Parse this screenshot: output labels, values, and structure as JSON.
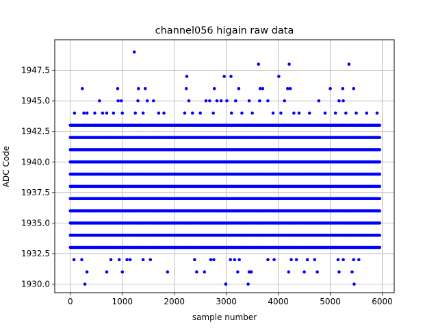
{
  "chart_data": {
    "type": "scatter",
    "title": "channel056 higain raw data",
    "xlabel": "sample number",
    "ylabel": "ADC Code",
    "xlim": [
      -300,
      6230
    ],
    "ylim": [
      1929.3,
      1950.0
    ],
    "xticks": [
      0,
      1000,
      2000,
      3000,
      4000,
      5000,
      6000
    ],
    "xtick_labels": [
      "0",
      "1000",
      "2000",
      "3000",
      "4000",
      "5000",
      "6000"
    ],
    "yticks": [
      1930.0,
      1932.5,
      1935.0,
      1937.5,
      1940.0,
      1942.5,
      1945.0,
      1947.5
    ],
    "ytick_labels": [
      "1930.0",
      "1932.5",
      "1935.0",
      "1937.5",
      "1940.0",
      "1942.5",
      "1945.0",
      "1947.5"
    ],
    "grid": true,
    "marker_color": "#0000ff",
    "series": [
      {
        "x_range": [
          0,
          5950
        ],
        "dense_levels": [
          1933,
          1934,
          1935,
          1936,
          1937,
          1938,
          1939,
          1940,
          1941,
          1942,
          1943
        ],
        "points": [
          [
            1230,
            1949
          ],
          [
            3620,
            1948
          ],
          [
            4210,
            1948
          ],
          [
            5360,
            1948
          ],
          [
            2240,
            1947
          ],
          [
            2960,
            1947
          ],
          [
            3090,
            1947
          ],
          [
            4010,
            1947
          ],
          [
            230,
            1946
          ],
          [
            910,
            1946
          ],
          [
            1310,
            1946
          ],
          [
            1440,
            1946
          ],
          [
            2230,
            1946
          ],
          [
            2770,
            1946
          ],
          [
            3240,
            1946
          ],
          [
            3650,
            1946
          ],
          [
            3700,
            1946
          ],
          [
            4180,
            1946
          ],
          [
            4230,
            1946
          ],
          [
            5000,
            1946
          ],
          [
            5240,
            1946
          ],
          [
            5450,
            1946
          ],
          [
            560,
            1945
          ],
          [
            920,
            1945
          ],
          [
            980,
            1945
          ],
          [
            1300,
            1945
          ],
          [
            1480,
            1945
          ],
          [
            1600,
            1945
          ],
          [
            2280,
            1945
          ],
          [
            2610,
            1945
          ],
          [
            2680,
            1945
          ],
          [
            2820,
            1945
          ],
          [
            2900,
            1945
          ],
          [
            3010,
            1945
          ],
          [
            3180,
            1945
          ],
          [
            3440,
            1945
          ],
          [
            3640,
            1945
          ],
          [
            3800,
            1945
          ],
          [
            4120,
            1945
          ],
          [
            4780,
            1945
          ],
          [
            5170,
            1945
          ],
          [
            5250,
            1945
          ],
          [
            80,
            1944
          ],
          [
            260,
            1944
          ],
          [
            320,
            1944
          ],
          [
            470,
            1944
          ],
          [
            620,
            1944
          ],
          [
            700,
            1944
          ],
          [
            830,
            1944
          ],
          [
            1000,
            1944
          ],
          [
            1250,
            1944
          ],
          [
            1400,
            1944
          ],
          [
            1700,
            1944
          ],
          [
            1800,
            1944
          ],
          [
            2200,
            1944
          ],
          [
            2350,
            1944
          ],
          [
            2500,
            1944
          ],
          [
            2750,
            1944
          ],
          [
            3100,
            1944
          ],
          [
            3300,
            1944
          ],
          [
            3500,
            1944
          ],
          [
            3900,
            1944
          ],
          [
            4050,
            1944
          ],
          [
            4300,
            1944
          ],
          [
            4400,
            1944
          ],
          [
            4600,
            1944
          ],
          [
            4900,
            1944
          ],
          [
            5100,
            1944
          ],
          [
            5300,
            1944
          ],
          [
            5500,
            1944
          ],
          [
            5700,
            1944
          ],
          [
            5900,
            1944
          ],
          [
            70,
            1932
          ],
          [
            220,
            1932
          ],
          [
            780,
            1932
          ],
          [
            940,
            1932
          ],
          [
            1090,
            1932
          ],
          [
            1150,
            1932
          ],
          [
            1400,
            1932
          ],
          [
            1540,
            1932
          ],
          [
            2390,
            1932
          ],
          [
            2700,
            1932
          ],
          [
            2760,
            1932
          ],
          [
            3080,
            1932
          ],
          [
            3160,
            1932
          ],
          [
            3250,
            1932
          ],
          [
            3800,
            1932
          ],
          [
            3920,
            1932
          ],
          [
            4250,
            1932
          ],
          [
            4350,
            1932
          ],
          [
            4560,
            1932
          ],
          [
            4700,
            1932
          ],
          [
            5150,
            1932
          ],
          [
            5250,
            1932
          ],
          [
            5450,
            1932
          ],
          [
            5550,
            1932
          ],
          [
            320,
            1931
          ],
          [
            700,
            1931
          ],
          [
            1000,
            1931
          ],
          [
            1870,
            1931
          ],
          [
            2430,
            1931
          ],
          [
            2580,
            1931
          ],
          [
            3220,
            1931
          ],
          [
            3440,
            1931
          ],
          [
            3480,
            1931
          ],
          [
            4200,
            1931
          ],
          [
            4500,
            1931
          ],
          [
            4750,
            1931
          ],
          [
            5170,
            1931
          ],
          [
            5420,
            1931
          ],
          [
            280,
            1930
          ],
          [
            2990,
            1930
          ],
          [
            3420,
            1930
          ],
          [
            5460,
            1930
          ]
        ]
      }
    ]
  }
}
